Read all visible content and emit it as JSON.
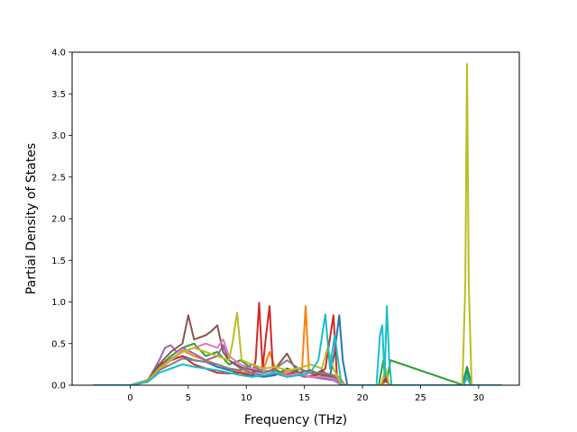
{
  "chart_data": {
    "type": "line",
    "title": "",
    "xlabel": "Frequency (THz)",
    "ylabel": "Partial Density of States",
    "xlim": [
      -5.0,
      33.5
    ],
    "ylim": [
      0.0,
      4.0
    ],
    "xticks": [
      0,
      5,
      10,
      15,
      20,
      25,
      30
    ],
    "yticks": [
      0.0,
      0.5,
      1.0,
      1.5,
      2.0,
      2.5,
      3.0,
      3.5,
      4.0
    ],
    "xtick_labels": [
      "0",
      "5",
      "10",
      "15",
      "20",
      "25",
      "30"
    ],
    "ytick_labels": [
      "0.0",
      "0.5",
      "1.0",
      "1.5",
      "2.0",
      "2.5",
      "3.0",
      "3.5",
      "4.0"
    ],
    "grid": false,
    "legend": "none",
    "series": [
      {
        "color": "#1f77b4",
        "x": [
          -3.2,
          0,
          1.5,
          2.5,
          3.5,
          4.5,
          5.5,
          6.5,
          7.5,
          8.5,
          9.5,
          10.5,
          11.5,
          12.5,
          13.5,
          14.5,
          15.5,
          16.5,
          17.2,
          17.6,
          18.0,
          18.3,
          18.7,
          21.5,
          22.0,
          22.4,
          28.6,
          29.0,
          29.4,
          32.0
        ],
        "y": [
          0,
          0,
          0.05,
          0.2,
          0.3,
          0.35,
          0.3,
          0.28,
          0.22,
          0.18,
          0.15,
          0.12,
          0.1,
          0.12,
          0.2,
          0.15,
          0.1,
          0.18,
          0.1,
          0.4,
          0.84,
          0.3,
          0,
          0,
          0.05,
          0,
          0,
          0.22,
          0,
          0
        ]
      },
      {
        "color": "#ff7f0e",
        "x": [
          -3.2,
          0,
          1.5,
          2.5,
          3.5,
          4.5,
          5.5,
          6.5,
          7.5,
          8.5,
          9.5,
          10.5,
          11.5,
          12.0,
          12.5,
          13.0,
          14.0,
          14.8,
          15.1,
          15.4,
          16.0,
          17.0,
          18.0,
          18.5,
          21.6,
          22.0,
          22.3,
          28.7,
          29.0,
          29.3,
          32.0
        ],
        "y": [
          0,
          0,
          0.04,
          0.18,
          0.3,
          0.42,
          0.35,
          0.3,
          0.25,
          0.2,
          0.16,
          0.15,
          0.2,
          0.4,
          0.2,
          0.15,
          0.18,
          0.2,
          0.95,
          0.15,
          0.12,
          0.14,
          0.1,
          0,
          0,
          0.1,
          0,
          0,
          0.15,
          0,
          0
        ]
      },
      {
        "color": "#2ca02c",
        "x": [
          -3.2,
          0,
          1.5,
          2.5,
          3.5,
          4.5,
          5.5,
          6.5,
          7.5,
          8.5,
          9.5,
          10.5,
          11.5,
          12.5,
          13.5,
          14.5,
          15.5,
          16.5,
          17.5,
          18.2,
          21.4,
          21.8,
          22.1,
          22.4,
          28.7,
          29.0,
          29.3,
          32.0
        ],
        "y": [
          0,
          0,
          0.05,
          0.22,
          0.35,
          0.45,
          0.5,
          0.35,
          0.4,
          0.25,
          0.3,
          0.2,
          0.15,
          0.18,
          0.12,
          0.2,
          0.15,
          0.12,
          0.1,
          0,
          0,
          0.3,
          0.05,
          0.3,
          0,
          0.2,
          0,
          0
        ]
      },
      {
        "color": "#d62728",
        "x": [
          -3.2,
          0,
          1.5,
          2.5,
          3.5,
          4.5,
          5.5,
          6.5,
          7.5,
          8.5,
          9.5,
          10.5,
          10.8,
          11.1,
          11.4,
          11.7,
          12.0,
          12.3,
          13.0,
          14.0,
          15.0,
          16.0,
          16.8,
          17.5,
          17.8,
          18.2,
          21.6,
          22.0,
          22.3,
          28.7,
          29.0,
          29.3,
          32.0
        ],
        "y": [
          0,
          0,
          0.04,
          0.25,
          0.3,
          0.35,
          0.25,
          0.2,
          0.15,
          0.14,
          0.15,
          0.1,
          0.3,
          0.99,
          0.2,
          0.6,
          0.95,
          0.15,
          0.12,
          0.15,
          0.1,
          0.12,
          0.2,
          0.84,
          0.1,
          0,
          0,
          0.08,
          0,
          0,
          0.1,
          0,
          0
        ]
      },
      {
        "color": "#9467bd",
        "x": [
          -3.2,
          0,
          1.5,
          2.5,
          3.0,
          3.5,
          4.0,
          4.5,
          5.5,
          6.5,
          7.5,
          8.0,
          8.5,
          9.5,
          10.5,
          11.5,
          12.5,
          13.5,
          14.5,
          15.5,
          16.5,
          17.5,
          18.2,
          32.0
        ],
        "y": [
          0,
          0,
          0.05,
          0.3,
          0.45,
          0.48,
          0.4,
          0.45,
          0.38,
          0.3,
          0.35,
          0.48,
          0.3,
          0.2,
          0.15,
          0.12,
          0.14,
          0.1,
          0.12,
          0.1,
          0.08,
          0.06,
          0,
          0
        ]
      },
      {
        "color": "#8c564b",
        "x": [
          -3.2,
          0,
          1.5,
          2.5,
          3.5,
          4.5,
          5.0,
          5.5,
          6.5,
          7.0,
          7.5,
          8.0,
          8.5,
          9.5,
          10.5,
          11.5,
          12.5,
          13.5,
          14.0,
          14.5,
          15.5,
          16.5,
          17.5,
          18.2,
          32.0
        ],
        "y": [
          0,
          0,
          0.06,
          0.25,
          0.4,
          0.5,
          0.84,
          0.55,
          0.6,
          0.65,
          0.72,
          0.4,
          0.3,
          0.22,
          0.18,
          0.15,
          0.2,
          0.38,
          0.25,
          0.15,
          0.18,
          0.12,
          0.1,
          0,
          0
        ]
      },
      {
        "color": "#e377c2",
        "x": [
          -3.2,
          0,
          1.5,
          2.5,
          3.5,
          4.5,
          5.5,
          6.5,
          7.5,
          8.0,
          8.5,
          9.5,
          10.5,
          11.5,
          12.5,
          13.5,
          14.5,
          15.5,
          16.5,
          17.5,
          18.2,
          32.0
        ],
        "y": [
          0,
          0,
          0.05,
          0.2,
          0.32,
          0.4,
          0.45,
          0.5,
          0.45,
          0.55,
          0.35,
          0.25,
          0.2,
          0.18,
          0.15,
          0.12,
          0.14,
          0.1,
          0.1,
          0.08,
          0,
          0
        ]
      },
      {
        "color": "#7f7f7f",
        "x": [
          -3.2,
          0,
          1.5,
          2.5,
          3.5,
          4.5,
          5.5,
          6.5,
          7.5,
          8.5,
          9.5,
          10.5,
          11.5,
          12.5,
          13.5,
          14.5,
          15.5,
          16.5,
          17.5,
          18.2,
          32.0
        ],
        "y": [
          0,
          0,
          0.04,
          0.18,
          0.25,
          0.32,
          0.3,
          0.28,
          0.25,
          0.2,
          0.18,
          0.25,
          0.15,
          0.2,
          0.3,
          0.2,
          0.15,
          0.15,
          0.12,
          0,
          0
        ]
      },
      {
        "color": "#bcbd22",
        "x": [
          -3.2,
          0,
          1.5,
          2.5,
          3.5,
          4.5,
          5.5,
          6.5,
          7.5,
          8.5,
          8.8,
          9.2,
          9.6,
          10.5,
          11.5,
          12.5,
          13.5,
          14.5,
          15.5,
          16.5,
          17.0,
          17.5,
          18.2,
          21.6,
          22.0,
          22.3,
          28.6,
          28.85,
          29.0,
          29.15,
          29.4,
          32.0
        ],
        "y": [
          0,
          0,
          0.05,
          0.2,
          0.3,
          0.4,
          0.45,
          0.4,
          0.35,
          0.3,
          0.5,
          0.87,
          0.3,
          0.25,
          0.2,
          0.22,
          0.18,
          0.2,
          0.25,
          0.2,
          0.45,
          0.2,
          0,
          0,
          0.2,
          0,
          0,
          1.2,
          3.86,
          1.2,
          0,
          0
        ]
      },
      {
        "color": "#17becf",
        "x": [
          -3.2,
          0,
          1.5,
          2.5,
          3.5,
          4.5,
          5.5,
          6.5,
          7.5,
          8.5,
          9.5,
          10.5,
          11.5,
          12.5,
          13.5,
          14.5,
          15.5,
          16.2,
          16.8,
          17.2,
          17.6,
          18.2,
          21.2,
          21.5,
          21.7,
          21.9,
          22.1,
          22.3,
          22.5,
          28.7,
          29.0,
          29.3,
          32.0
        ],
        "y": [
          0,
          0,
          0.04,
          0.15,
          0.2,
          0.25,
          0.22,
          0.2,
          0.18,
          0.15,
          0.12,
          0.1,
          0.12,
          0.15,
          0.1,
          0.12,
          0.15,
          0.3,
          0.85,
          0.2,
          0.6,
          0,
          0,
          0.6,
          0.72,
          0.1,
          0.95,
          0.3,
          0,
          0,
          0.12,
          0,
          0
        ]
      }
    ]
  }
}
